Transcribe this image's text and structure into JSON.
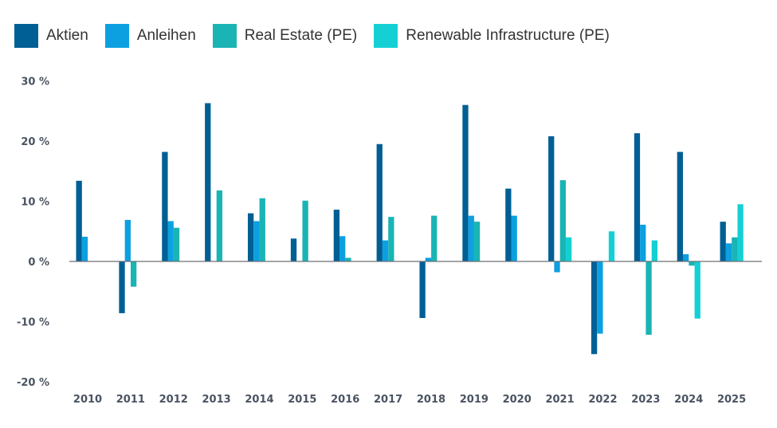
{
  "chart_data": {
    "type": "bar",
    "title": "",
    "xlabel": "",
    "ylabel": "",
    "ylim": [
      -20,
      30
    ],
    "yticks": [
      30,
      20,
      10,
      0,
      -10,
      -20
    ],
    "ytick_labels": [
      "30 %",
      "20 %",
      "10 %",
      "0 %",
      "-10 %",
      "-20 %"
    ],
    "grid": false,
    "legend_position": "top-left",
    "categories": [
      "2010",
      "2011",
      "2012",
      "2013",
      "2014",
      "2015",
      "2016",
      "2017",
      "2018",
      "2019",
      "2020",
      "2021",
      "2022",
      "2023",
      "2024",
      "2025"
    ],
    "series": [
      {
        "name": "Aktien",
        "color": "#005f94",
        "values": [
          13.4,
          -8.6,
          18.2,
          26.3,
          8.0,
          3.8,
          8.6,
          19.5,
          -9.4,
          26.0,
          12.1,
          20.8,
          -15.4,
          21.3,
          18.2,
          6.6
        ]
      },
      {
        "name": "Anleihen",
        "color": "#0ca0e0",
        "values": [
          4.1,
          6.9,
          6.7,
          null,
          6.7,
          null,
          4.2,
          3.5,
          0.6,
          7.6,
          7.6,
          -1.8,
          -12.0,
          6.1,
          1.2,
          3.0
        ]
      },
      {
        "name": "Real Estate (PE)",
        "color": "#1ab4b4",
        "values": [
          null,
          -4.2,
          5.6,
          11.8,
          10.5,
          10.1,
          0.6,
          7.4,
          7.6,
          6.6,
          null,
          13.5,
          null,
          -12.2,
          -0.7,
          4.0
        ]
      },
      {
        "name": "Renewable Infrastructure (PE)",
        "color": "#14d0d4",
        "values": [
          null,
          null,
          null,
          null,
          null,
          null,
          null,
          null,
          null,
          null,
          null,
          4.0,
          5.0,
          3.5,
          -9.5,
          9.5
        ]
      }
    ]
  }
}
